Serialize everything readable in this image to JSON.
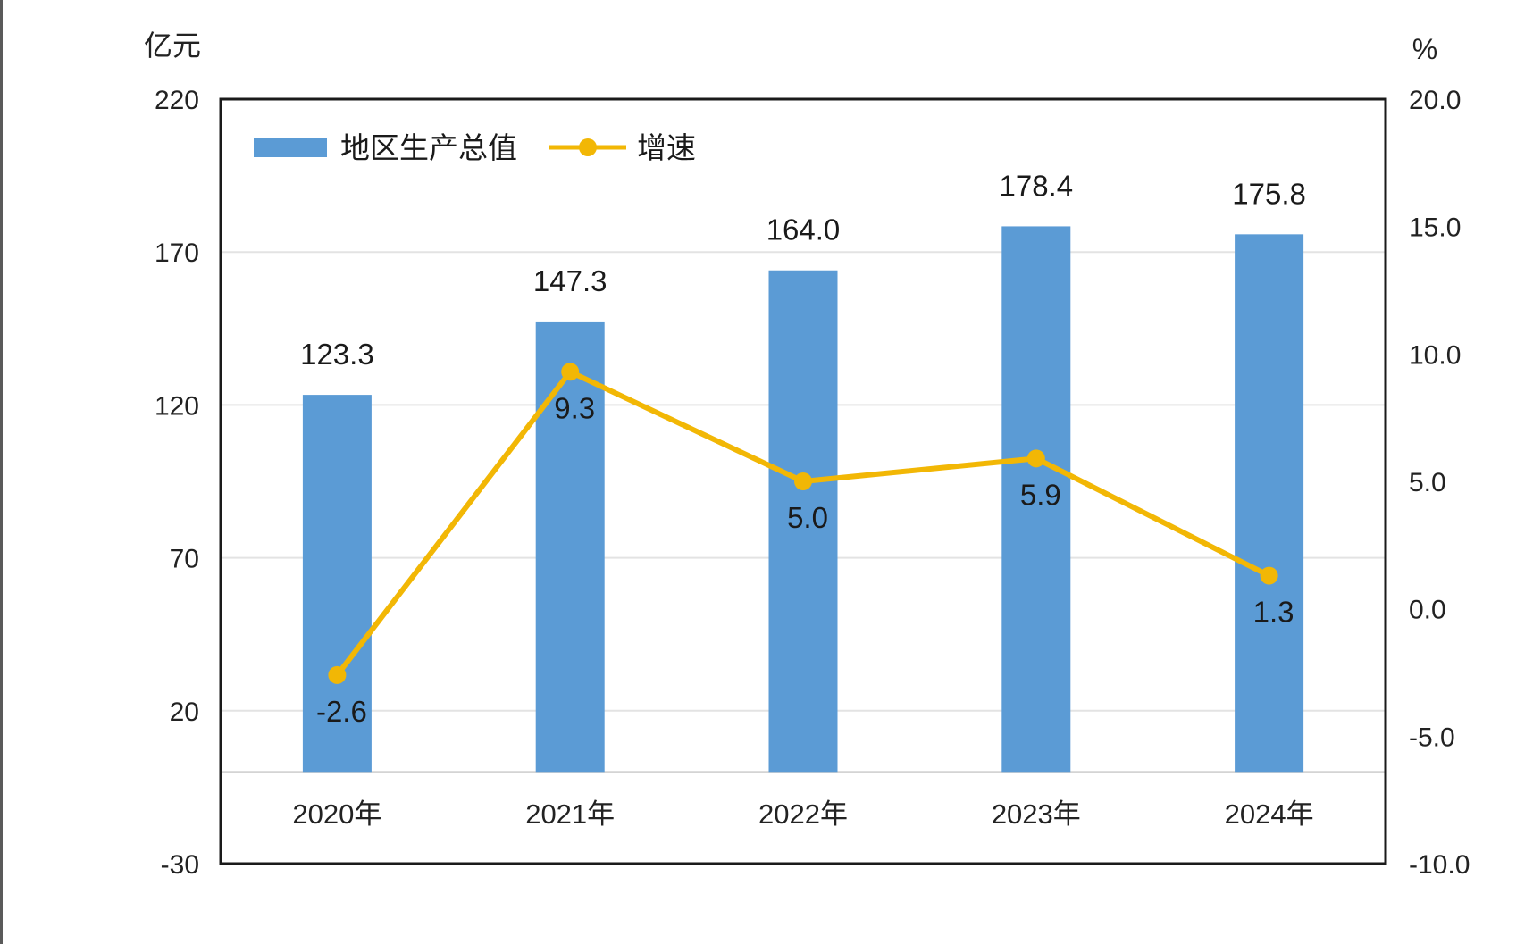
{
  "chart_data": {
    "type": "bar",
    "categories": [
      "2020年",
      "2021年",
      "2022年",
      "2023年",
      "2024年"
    ],
    "series": [
      {
        "name": "地区生产总值",
        "type": "bar",
        "axis": "left",
        "values": [
          123.3,
          147.3,
          164.0,
          178.4,
          175.8
        ],
        "labels": [
          "123.3",
          "147.3",
          "164.0",
          "178.4",
          "175.8"
        ],
        "color": "#5B9BD5"
      },
      {
        "name": "增速",
        "type": "line",
        "axis": "right",
        "values": [
          -2.6,
          9.3,
          5.0,
          5.9,
          1.3
        ],
        "labels": [
          "-2.6",
          "9.3",
          "5.0",
          "5.9",
          "1.3"
        ],
        "color": "#F2B705"
      }
    ],
    "y_left": {
      "unit": "亿元",
      "range": [
        -30,
        220
      ],
      "ticks": [
        "220",
        "170",
        "120",
        "70",
        "20",
        "-30"
      ],
      "tick_values": [
        220,
        170,
        120,
        70,
        20,
        -30
      ],
      "baseline": 0
    },
    "y_right": {
      "unit": "%",
      "range": [
        -10,
        20
      ],
      "ticks": [
        "20.0",
        "15.0",
        "10.0",
        "5.0",
        "0.0",
        "-5.0",
        "-10.0"
      ],
      "tick_values": [
        20,
        15,
        10,
        5,
        0,
        -5,
        -10
      ]
    },
    "grid": true,
    "legend": "top-left"
  }
}
